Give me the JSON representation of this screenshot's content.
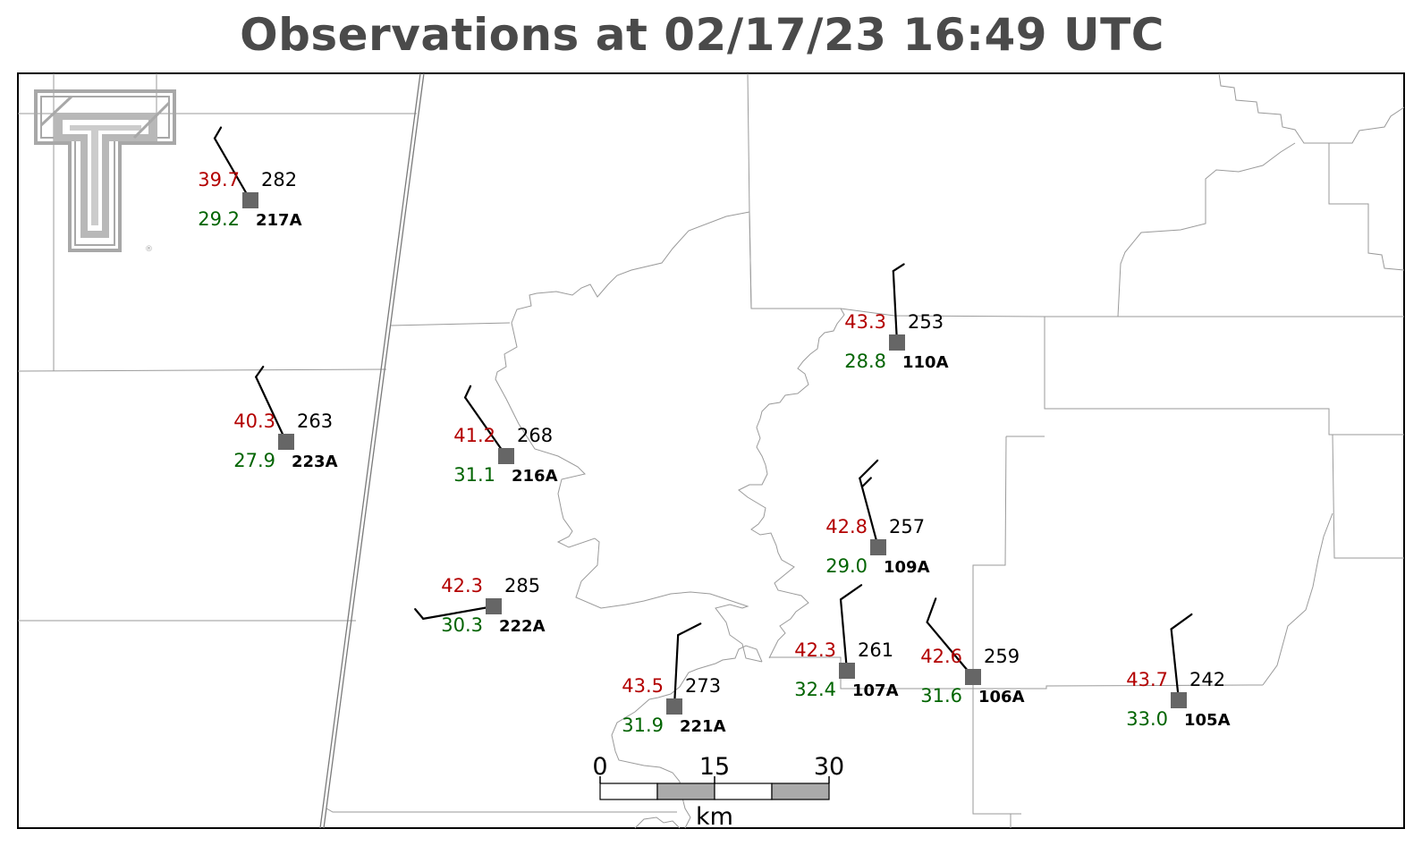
{
  "title": "Observations at 02/17/23 16:49 UTC",
  "colors": {
    "temperature": "#b30000",
    "dewpoint": "#006400",
    "station": "#666666",
    "boundary": "#9a9a9a",
    "logo": "#a8a8a8"
  },
  "logo_icon": "texas-tech-double-t-logo",
  "scale_bar": {
    "ticks": [
      "0",
      "15",
      "30"
    ],
    "unit": "km"
  },
  "stations": [
    {
      "id": "217A",
      "temp": "39.7",
      "dewpoint": "29.2",
      "direction": "282",
      "wind_dir_deg": 330,
      "barbs": [
        0.5
      ]
    },
    {
      "id": "223A",
      "temp": "40.3",
      "dewpoint": "27.9",
      "direction": "263",
      "wind_dir_deg": 335,
      "barbs": [
        0.5
      ]
    },
    {
      "id": "216A",
      "temp": "41.2",
      "dewpoint": "31.1",
      "direction": "268",
      "wind_dir_deg": 325,
      "barbs": [
        0.5
      ]
    },
    {
      "id": "222A",
      "temp": "42.3",
      "dewpoint": "30.3",
      "direction": "285",
      "wind_dir_deg": 260,
      "barbs": [
        0.5
      ]
    },
    {
      "id": "110A",
      "temp": "43.3",
      "dewpoint": "28.8",
      "direction": "253",
      "wind_dir_deg": 357,
      "barbs": [
        0.5
      ]
    },
    {
      "id": "109A",
      "temp": "42.8",
      "dewpoint": "29.0",
      "direction": "257",
      "wind_dir_deg": 345,
      "barbs": [
        1,
        0.5
      ]
    },
    {
      "id": "107A",
      "temp": "42.3",
      "dewpoint": "32.4",
      "direction": "261",
      "wind_dir_deg": 355,
      "barbs": [
        1
      ]
    },
    {
      "id": "106A",
      "temp": "42.6",
      "dewpoint": "31.6",
      "direction": "259",
      "wind_dir_deg": 320,
      "barbs": [
        1
      ]
    },
    {
      "id": "105A",
      "temp": "43.7",
      "dewpoint": "33.0",
      "direction": "242",
      "wind_dir_deg": 354,
      "barbs": [
        1
      ]
    },
    {
      "id": "221A",
      "temp": "43.5",
      "dewpoint": "31.9",
      "direction": "273",
      "wind_dir_deg": 3,
      "barbs": [
        1
      ]
    }
  ]
}
